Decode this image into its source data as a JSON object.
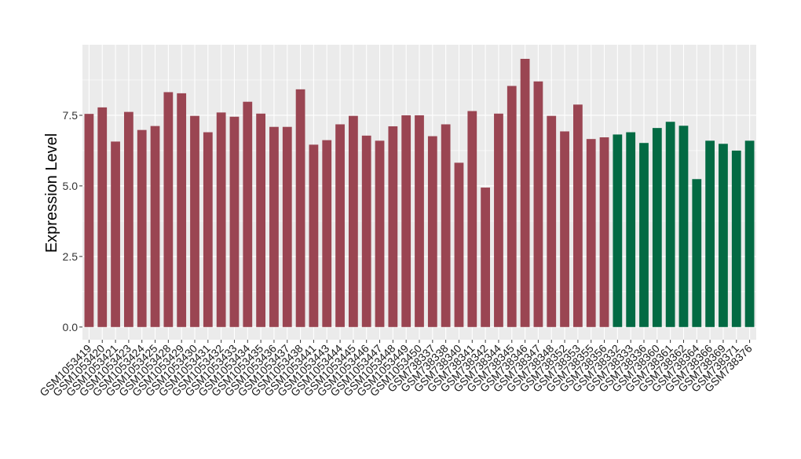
{
  "chart_data": {
    "type": "bar",
    "ylabel": "Expression Level",
    "ylim": [
      -0.45,
      10.0
    ],
    "yticks": [
      0.0,
      2.5,
      5.0,
      7.5
    ],
    "ytick_labels": [
      "0.0",
      "2.5",
      "5.0",
      "7.5"
    ],
    "grid": true,
    "legend": "none",
    "colors": {
      "group1": "#9a4552",
      "group2": "#036a43",
      "panel": "#ebebeb",
      "gridline": "#ffffff"
    },
    "categories": [
      "GSM1053419",
      "GSM1053420",
      "GSM1053421",
      "GSM1053423",
      "GSM1053424",
      "GSM1053425",
      "GSM1053428",
      "GSM1053429",
      "GSM1053430",
      "GSM1053431",
      "GSM1053432",
      "GSM1053433",
      "GSM1053434",
      "GSM1053435",
      "GSM1053436",
      "GSM1053437",
      "GSM1053438",
      "GSM1053441",
      "GSM1053443",
      "GSM1053444",
      "GSM1053445",
      "GSM1053446",
      "GSM1053447",
      "GSM1053448",
      "GSM1053449",
      "GSM1053450",
      "GSM738337",
      "GSM738338",
      "GSM738340",
      "GSM738341",
      "GSM738342",
      "GSM738344",
      "GSM738345",
      "GSM738346",
      "GSM738347",
      "GSM738348",
      "GSM738352",
      "GSM738353",
      "GSM738355",
      "GSM738356",
      "GSM738332",
      "GSM738333",
      "GSM738336",
      "GSM738360",
      "GSM738361",
      "GSM738362",
      "GSM738364",
      "GSM738366",
      "GSM738369",
      "GSM738371",
      "GSM738376"
    ],
    "values": [
      7.55,
      7.78,
      6.57,
      7.62,
      6.98,
      7.12,
      8.32,
      8.28,
      7.48,
      6.9,
      7.6,
      7.45,
      7.98,
      7.56,
      7.09,
      7.09,
      8.42,
      6.46,
      6.62,
      7.18,
      7.48,
      6.78,
      6.6,
      7.11,
      7.5,
      7.5,
      6.76,
      7.18,
      5.82,
      7.65,
      4.94,
      7.56,
      8.54,
      9.5,
      8.7,
      7.48,
      6.93,
      7.88,
      6.66,
      6.72,
      6.82,
      6.9,
      6.52,
      7.05,
      7.27,
      7.13,
      5.24,
      6.6,
      6.49,
      6.25,
      6.6
    ],
    "groups": [
      1,
      1,
      1,
      1,
      1,
      1,
      1,
      1,
      1,
      1,
      1,
      1,
      1,
      1,
      1,
      1,
      1,
      1,
      1,
      1,
      1,
      1,
      1,
      1,
      1,
      1,
      1,
      1,
      1,
      1,
      1,
      1,
      1,
      1,
      1,
      1,
      1,
      1,
      1,
      1,
      2,
      2,
      2,
      2,
      2,
      2,
      2,
      2,
      2,
      2,
      2
    ]
  }
}
